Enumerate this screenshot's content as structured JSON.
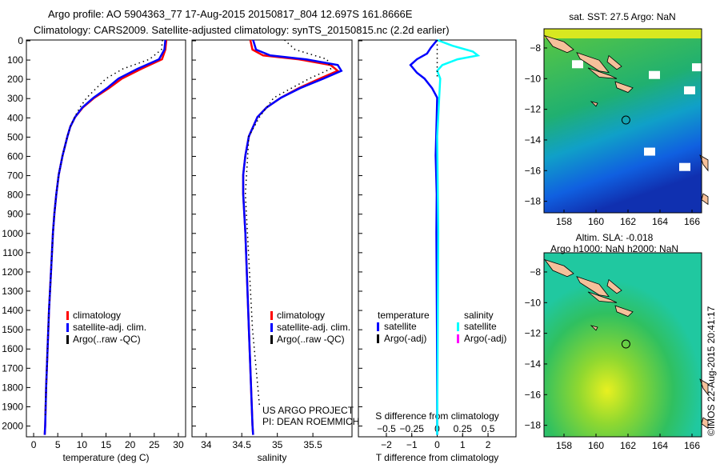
{
  "title_line1": "Argo profile: AO 5904363_77 17-Aug-2015 20150817_804 12.697S 161.8666E",
  "title_line2": "Climatology: CARS2009. Satellite-adjusted climatology: synTS_20150815.nc (2.2d earlier)",
  "credit": "US ARGO PROJECT",
  "pi": "PI: DEAN ROEMMICH",
  "timestamp": "©IMOS 22-Aug-2015 20:41:17",
  "colors": {
    "climatology": "#ff0000",
    "satellite": "#0000ff",
    "argo": "#000000",
    "sal_satellite": "#00ffff",
    "sal_argo": "#ff00ff",
    "land": "#f5c09a"
  },
  "chart_data": [
    {
      "type": "line",
      "xlabel": "temperature (deg C)",
      "ylabel": "depth",
      "xlim": [
        -1.5,
        31.5
      ],
      "ylim": [
        2060,
        0
      ],
      "xticks": [
        0,
        5,
        10,
        15,
        20,
        25,
        30
      ],
      "yticks": [
        0,
        100,
        200,
        300,
        400,
        500,
        600,
        700,
        800,
        900,
        1000,
        1100,
        1200,
        1300,
        1400,
        1500,
        1600,
        1700,
        1800,
        1900,
        2000
      ],
      "legend": [
        "climatology",
        "satellite-adj. clim.",
        "Argo(..raw -QC)"
      ],
      "series": [
        {
          "name": "climatology",
          "color": "#ff0000",
          "depth": [
            0,
            50,
            100,
            150,
            200,
            250,
            300,
            350,
            400,
            450,
            500,
            600,
            700,
            800,
            900,
            1000,
            1200,
            1400,
            1600,
            1800,
            2000,
            2050
          ],
          "values": [
            27.5,
            27.3,
            26.6,
            22.3,
            18.3,
            15.6,
            12.6,
            10.2,
            8.6,
            7.6,
            7.0,
            6.0,
            5.2,
            4.7,
            4.3,
            4.0,
            3.6,
            3.2,
            2.9,
            2.6,
            2.4,
            2.3
          ]
        },
        {
          "name": "satellite-adj. clim.",
          "color": "#0000ff",
          "depth": [
            0,
            50,
            100,
            150,
            200,
            250,
            300,
            350,
            400,
            450,
            500,
            600,
            700,
            800,
            900,
            1000,
            1200,
            1400,
            1600,
            1800,
            2000,
            2050
          ],
          "values": [
            27.3,
            27.1,
            26.0,
            21.5,
            17.6,
            15.2,
            12.4,
            10.1,
            8.6,
            7.6,
            7.0,
            6.0,
            5.2,
            4.7,
            4.3,
            4.0,
            3.6,
            3.2,
            2.9,
            2.6,
            2.4,
            2.3
          ]
        },
        {
          "name": "Argo(..raw -QC)",
          "color": "#000000",
          "dotted": true,
          "depth": [
            0,
            50,
            100,
            150,
            200,
            250,
            300,
            350,
            400,
            450,
            500,
            600,
            700,
            800,
            900,
            1000,
            1200,
            1400,
            1600,
            1800,
            1950
          ],
          "values": [
            26.7,
            26.5,
            24.0,
            18.5,
            15.0,
            13.0,
            11.0,
            9.6,
            8.5,
            7.6,
            7.0,
            6.0,
            5.2,
            4.7,
            4.3,
            4.0,
            3.6,
            3.2,
            2.9,
            2.6,
            2.4
          ]
        }
      ]
    },
    {
      "type": "line",
      "xlabel": "salinity",
      "ylabel": "depth",
      "xlim": [
        33.8,
        36.05
      ],
      "ylim": [
        2060,
        0
      ],
      "xticks": [
        34,
        34.5,
        35,
        35.5
      ],
      "legend": [
        "climatology",
        "satellite-adj. clim.",
        "Argo(..raw -QC)"
      ],
      "series": [
        {
          "name": "climatology",
          "color": "#ff0000",
          "depth": [
            0,
            50,
            80,
            100,
            130,
            160,
            200,
            250,
            300,
            350,
            400,
            500,
            600,
            700,
            800,
            1000,
            1500,
            2000,
            2050
          ],
          "values": [
            34.62,
            34.65,
            34.8,
            35.3,
            35.75,
            35.85,
            35.6,
            35.3,
            35.05,
            34.85,
            34.72,
            34.6,
            34.55,
            34.52,
            34.52,
            34.55,
            34.6,
            34.65,
            34.66
          ]
        },
        {
          "name": "satellite-adj. clim.",
          "color": "#0000ff",
          "depth": [
            0,
            50,
            80,
            100,
            130,
            160,
            200,
            250,
            300,
            350,
            400,
            500,
            600,
            700,
            800,
            1000,
            1500,
            2000,
            2050
          ],
          "values": [
            34.66,
            34.7,
            34.9,
            35.4,
            35.85,
            35.9,
            35.65,
            35.32,
            35.05,
            34.85,
            34.72,
            34.6,
            34.55,
            34.52,
            34.52,
            34.55,
            34.6,
            34.65,
            34.66
          ]
        },
        {
          "name": "Argo(..raw -QC)",
          "color": "#000000",
          "dotted": true,
          "depth": [
            0,
            50,
            100,
            150,
            200,
            250,
            300,
            400,
            500,
            800,
            1000,
            1500,
            1900
          ],
          "values": [
            35.1,
            35.25,
            35.7,
            35.75,
            35.45,
            35.2,
            34.95,
            34.75,
            34.6,
            34.55,
            34.58,
            34.65,
            34.75
          ]
        }
      ]
    },
    {
      "type": "line",
      "xlabel": "T difference from climatology",
      "x2label": "S difference from climatology",
      "xlim": [
        -3.1,
        3.1
      ],
      "x2lim": [
        -0.775,
        0.775
      ],
      "ylim": [
        2060,
        0
      ],
      "xticks": [
        -2,
        -1,
        0,
        1,
        2
      ],
      "x2ticks": [
        -0.5,
        -0.25,
        0,
        0.25,
        0.5
      ],
      "legend_titles": [
        "temperature",
        "salinity"
      ],
      "legend": [
        "satellite",
        "Argo(-adj)",
        "satellite",
        "Argo(-adj)"
      ],
      "series": [
        {
          "name": "T satellite",
          "color": "#0000ff",
          "axis": "T",
          "depth": [
            0,
            40,
            70,
            100,
            130,
            170,
            200,
            250,
            300,
            400,
            600,
            800,
            1000,
            1500,
            2000,
            2050
          ],
          "values": [
            0,
            -0.25,
            -0.4,
            -0.8,
            -1.05,
            -0.8,
            -0.5,
            -0.2,
            0,
            -0.02,
            -0.06,
            -0.02,
            -0.03,
            -0.01,
            0,
            0
          ]
        },
        {
          "name": "S satellite",
          "color": "#00ffff",
          "axis": "S",
          "depth": [
            0,
            30,
            60,
            80,
            100,
            130,
            160,
            200,
            300,
            500,
            1000,
            2050
          ],
          "values": [
            0,
            0.15,
            0.35,
            0.4,
            0.2,
            0.05,
            0,
            0.03,
            0.02,
            0,
            0.01,
            0
          ]
        },
        {
          "name": "Argo zero",
          "color": "#000000",
          "dotted": true,
          "axis": "T",
          "depth": [
            0,
            200
          ],
          "values": [
            0,
            0
          ]
        }
      ]
    }
  ],
  "map_sst": {
    "title": "sat. SST: 27.5 Argo: NaN",
    "xticks": [
      158,
      160,
      162,
      164,
      166
    ],
    "yticks": [
      -8,
      -10,
      -12,
      -14,
      -16,
      -18
    ],
    "argo_lon": 161.87,
    "argo_lat": -12.7
  },
  "map_sla": {
    "title1": "Altim. SLA: -0.018",
    "title2": "Argo h1000: NaN h2000: NaN",
    "xticks": [
      158,
      160,
      162,
      164,
      166
    ],
    "yticks": [
      -8,
      -10,
      -12,
      -14,
      -16,
      -18
    ],
    "argo_lon": 161.87,
    "argo_lat": -12.7
  }
}
